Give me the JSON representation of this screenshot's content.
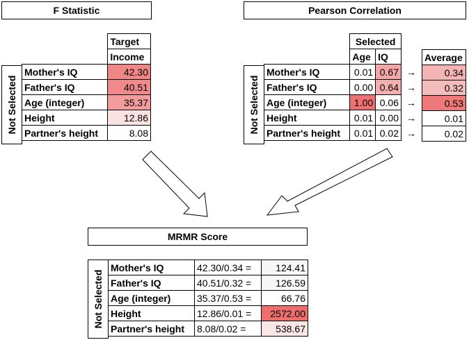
{
  "f_statistic": {
    "title": "F Statistic",
    "header_line1": "Target",
    "header_line2": "Income",
    "side_label": "Not Selected",
    "rows": [
      {
        "label": "Mother's IQ",
        "value": "42.30",
        "color": "#f08686"
      },
      {
        "label": "Father's IQ",
        "value": "40.51",
        "color": "#f08a8a"
      },
      {
        "label": "Age (integer)",
        "value": "35.37",
        "color": "#f29c9c"
      },
      {
        "label": "Height",
        "value": "12.86",
        "color": "#fbe2e2"
      },
      {
        "label": "Partner's height",
        "value": "8.08",
        "color": "#ffffff"
      }
    ]
  },
  "pearson": {
    "title": "Pearson Correlation",
    "selected_header": "Selected",
    "col_age": "Age",
    "col_iq": "IQ",
    "average_header": "Average",
    "side_label": "Not Selected",
    "arrow_symbol": "→",
    "rows": [
      {
        "label": "Mother's IQ",
        "age": "0.01",
        "iq": "0.67",
        "avg": "0.34",
        "age_color": "#ffffff",
        "iq_color": "#f2a6a6",
        "avg_color": "#f4b4b4"
      },
      {
        "label": "Father's IQ",
        "age": "0.00",
        "iq": "0.64",
        "avg": "0.32",
        "age_color": "#ffffff",
        "iq_color": "#f4b0b0",
        "avg_color": "#f5bcbc"
      },
      {
        "label": "Age (integer)",
        "age": "1.00",
        "iq": "0.06",
        "avg": "0.53",
        "age_color": "#ee7070",
        "iq_color": "#ffffff",
        "avg_color": "#ef7878"
      },
      {
        "label": "Height",
        "age": "0.01",
        "iq": "0.00",
        "avg": "0.01",
        "age_color": "#ffffff",
        "iq_color": "#ffffff",
        "avg_color": "#ffffff"
      },
      {
        "label": "Partner's height",
        "age": "0.01",
        "iq": "0.02",
        "avg": "0.02",
        "age_color": "#ffffff",
        "iq_color": "#ffffff",
        "avg_color": "#ffffff"
      }
    ]
  },
  "mrmr": {
    "title": "MRMR Score",
    "side_label": "Not Selected",
    "rows": [
      {
        "label": "Mother's IQ",
        "formula": "42.30/0.34 =",
        "score": "124.41",
        "color": "#f7f7f7"
      },
      {
        "label": "Father's IQ",
        "formula": "40.51/0.32 =",
        "score": "126.59",
        "color": "#f7f7f7"
      },
      {
        "label": "Age (integer)",
        "formula": "35.37/0.53 =",
        "score": "66.76",
        "color": "#ffffff"
      },
      {
        "label": "Height",
        "formula": "12.86/0.01 =",
        "score": "2572.00",
        "color": "#ee6e6e"
      },
      {
        "label": "Partner's height",
        "formula": "8.08/0.02 =",
        "score": "538.67",
        "color": "#fbe6e6"
      }
    ]
  }
}
